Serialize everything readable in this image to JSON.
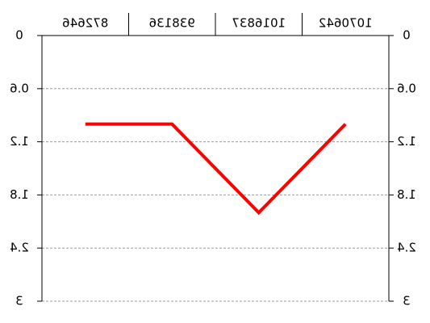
{
  "chart_data": {
    "type": "line",
    "orientation_note_text": "",
    "categories": [
      "872646",
      "938136",
      "1016837",
      "1070642"
    ],
    "values": [
      1.0,
      1.0,
      2.0,
      1.0
    ],
    "ylim": [
      0,
      3
    ],
    "y_inverted": true,
    "yticks": [
      0,
      0.6,
      1.2,
      1.8,
      2.4,
      3
    ],
    "ytick_labels": [
      "0",
      "0.6",
      "1.2",
      "1.8",
      "2.4",
      "3"
    ],
    "grid": true,
    "mirrored_text": true,
    "series_color": "#ff0000",
    "grid_color": "#999999",
    "axis_color": "#000000"
  }
}
